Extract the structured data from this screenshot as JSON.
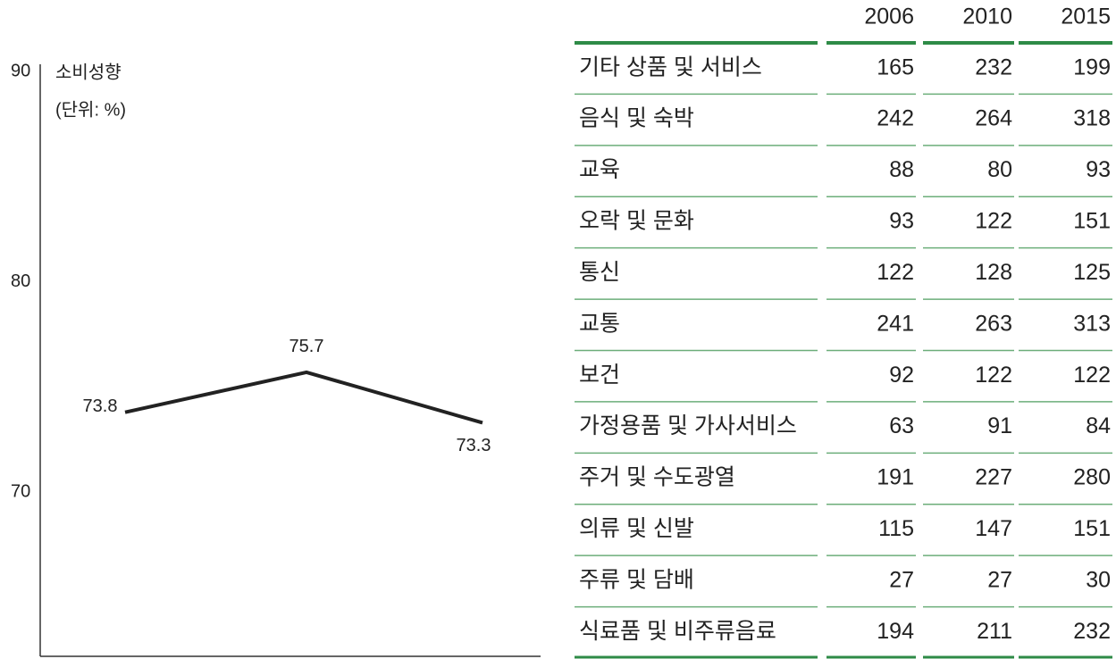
{
  "chart_data": {
    "type": "line",
    "title": "소비성향",
    "subtitle": "(단위: %)",
    "categories": [
      null,
      null,
      null
    ],
    "series": [
      {
        "name": null,
        "color": "#222222",
        "values": [
          73.8,
          75.7,
          73.3
        ]
      }
    ],
    "ylim": [
      62.2,
      90
    ],
    "yticks": [
      70,
      80,
      90
    ],
    "grid": false
  },
  "table": {
    "columns": [
      "2006",
      "2010",
      "2015"
    ],
    "rows": [
      {
        "label": "기타 상품 및 서비스",
        "values": [
          165,
          232,
          199
        ]
      },
      {
        "label": "음식 및 숙박",
        "values": [
          242,
          264,
          318
        ]
      },
      {
        "label": "교육",
        "values": [
          88,
          80,
          93
        ]
      },
      {
        "label": "오락 및 문화",
        "values": [
          93,
          122,
          151
        ]
      },
      {
        "label": "통신",
        "values": [
          122,
          128,
          125
        ]
      },
      {
        "label": "교통",
        "values": [
          241,
          263,
          313
        ]
      },
      {
        "label": "보건",
        "values": [
          92,
          122,
          122
        ]
      },
      {
        "label": "가정용품 및 가사서비스",
        "values": [
          63,
          91,
          84
        ]
      },
      {
        "label": "주거 및 수도광열",
        "values": [
          191,
          227,
          280
        ]
      },
      {
        "label": "의류 및 신발",
        "values": [
          115,
          147,
          151
        ]
      },
      {
        "label": "주류 및 담배",
        "values": [
          27,
          27,
          30
        ]
      },
      {
        "label": "식료품 및 비주류음료",
        "values": [
          194,
          211,
          232
        ]
      }
    ]
  }
}
